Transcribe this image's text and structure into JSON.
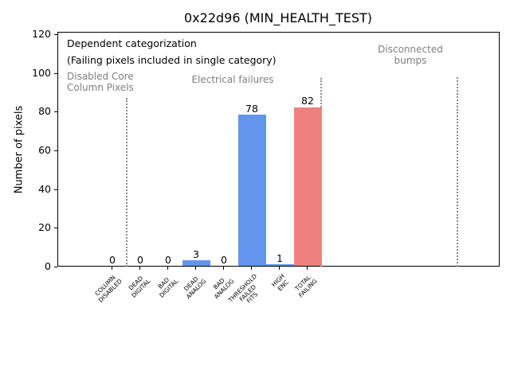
{
  "title": "0x22d96 (MIN_HEALTH_TEST)",
  "ylabel": "Number of pixels",
  "annotations": {
    "dependent_line1": "Dependent categorization",
    "dependent_line2": "(Failing pixels included in single category)",
    "region_disabled": "Disabled Core\nColumn Pixels",
    "region_electrical": "Electrical failures",
    "region_disconnected": "Disconnected\nbumps"
  },
  "colors": {
    "bar_blue": "#6495ED",
    "bar_red": "#F08080",
    "gray_text": "#7f7f7f",
    "separator_gray": "#8a8a8a",
    "axis_black": "#000000",
    "background": "#ffffff"
  },
  "chart_data": {
    "type": "bar",
    "title": "0x22d96 (MIN_HEALTH_TEST)",
    "xlabel": "",
    "ylabel": "Number of pixels",
    "categories": [
      "COLUMN\nDISABLED",
      "DEAD\nDIGITAL",
      "BAD\nDIGITAL",
      "DEAD\nANALOG",
      "BAD\nANALOG",
      "THRESHOLD\nFAILED\nFITS",
      "HIGH\nENC",
      "TOTAL\nFAILING"
    ],
    "values": [
      0,
      0,
      0,
      3,
      0,
      78,
      1,
      82
    ],
    "bar_value_labels": [
      "0",
      "0",
      "0",
      "3",
      "0",
      "78",
      "1",
      "82"
    ],
    "bar_colors": [
      "#6495ED",
      "#6495ED",
      "#6495ED",
      "#6495ED",
      "#6495ED",
      "#6495ED",
      "#6495ED",
      "#F08080"
    ],
    "yticks": [
      0,
      20,
      40,
      60,
      80,
      100,
      120
    ],
    "ylim": [
      0,
      121
    ],
    "grid": false,
    "legend": null,
    "annotations_black": [
      "Dependent categorization",
      "(Failing pixels included in single category)"
    ],
    "region_groups": [
      {
        "label": "Disabled Core\nColumn Pixels",
        "categories": [
          "COLUMN DISABLED"
        ]
      },
      {
        "label": "Electrical failures",
        "categories": [
          "DEAD DIGITAL",
          "BAD DIGITAL",
          "DEAD ANALOG",
          "BAD ANALOG",
          "THRESHOLD FAILED FITS",
          "HIGH ENC",
          "TOTAL FAILING"
        ]
      },
      {
        "label": "Disconnected bumps",
        "categories": []
      }
    ],
    "separator_style": "dotted vertical gray lines between region groups"
  }
}
